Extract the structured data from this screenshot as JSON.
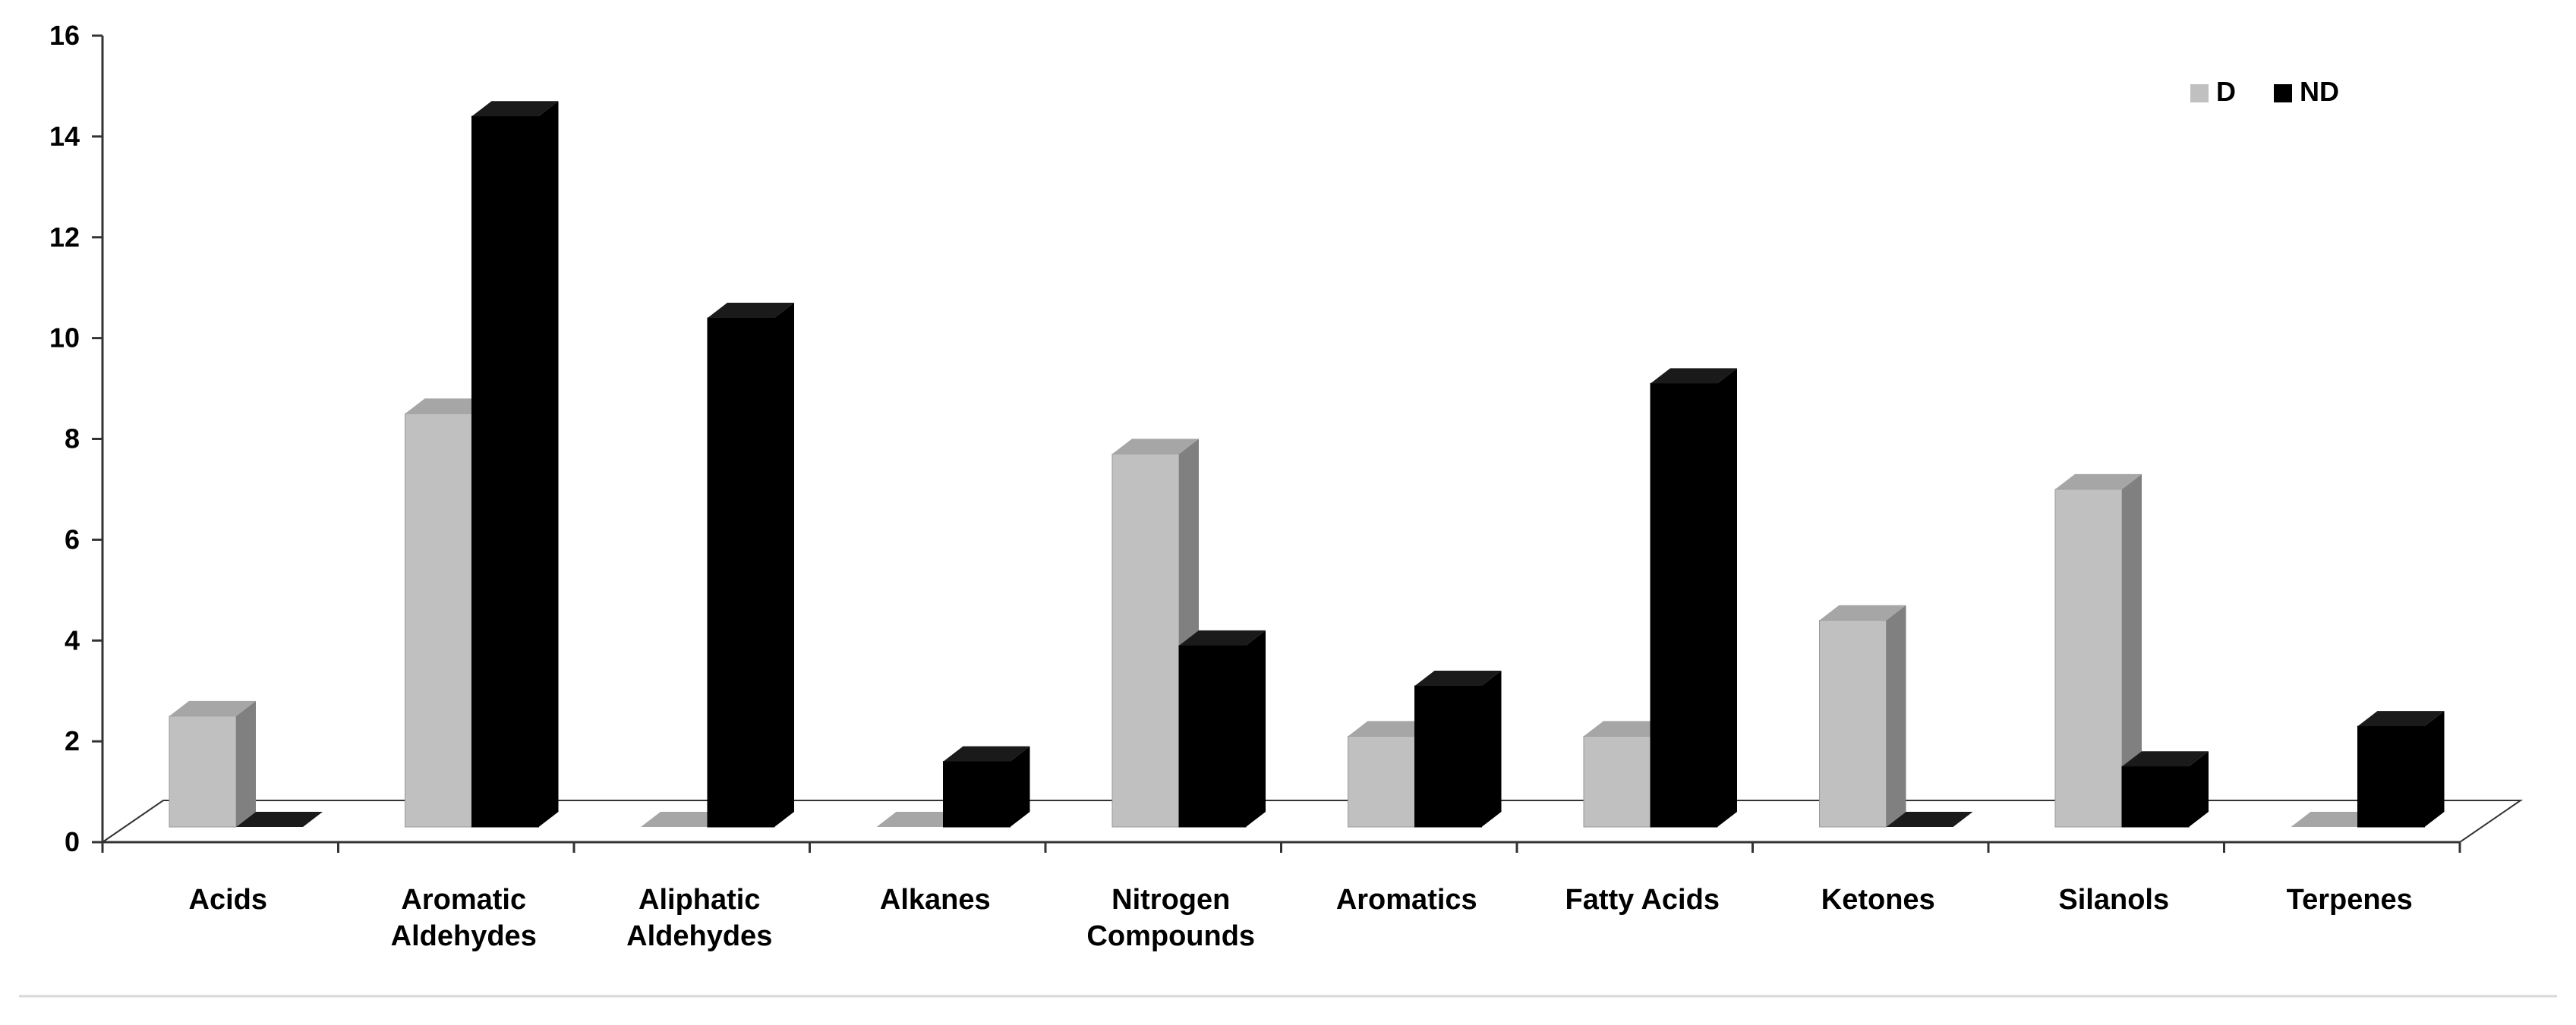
{
  "chart_data": {
    "type": "bar",
    "title": "",
    "xlabel": "",
    "ylabel": "",
    "ylim": [
      0,
      16
    ],
    "yticks": [
      "0",
      "2",
      "4",
      "6",
      "8",
      "10",
      "12",
      "14",
      "16"
    ],
    "categories": [
      "Acids",
      "Aromatic Aldehydes",
      "Aliphatic Aldehydes",
      "Alkanes",
      "Nitrogen Compounds",
      "Aromatics",
      "Fatty Acids",
      "Ketones",
      "Silanols",
      "Terpenes"
    ],
    "series": [
      {
        "name": "D",
        "color": "#c0c0c0",
        "values": [
          2.2,
          8.2,
          0,
          0,
          7.4,
          1.8,
          1.8,
          4.1,
          6.7,
          0
        ]
      },
      {
        "name": "ND",
        "color": "#000000",
        "values": [
          0,
          14.1,
          10.1,
          1.3,
          3.6,
          2.8,
          8.8,
          0,
          1.2,
          2.0
        ]
      }
    ],
    "legend_position": "top-right",
    "grid": false
  }
}
